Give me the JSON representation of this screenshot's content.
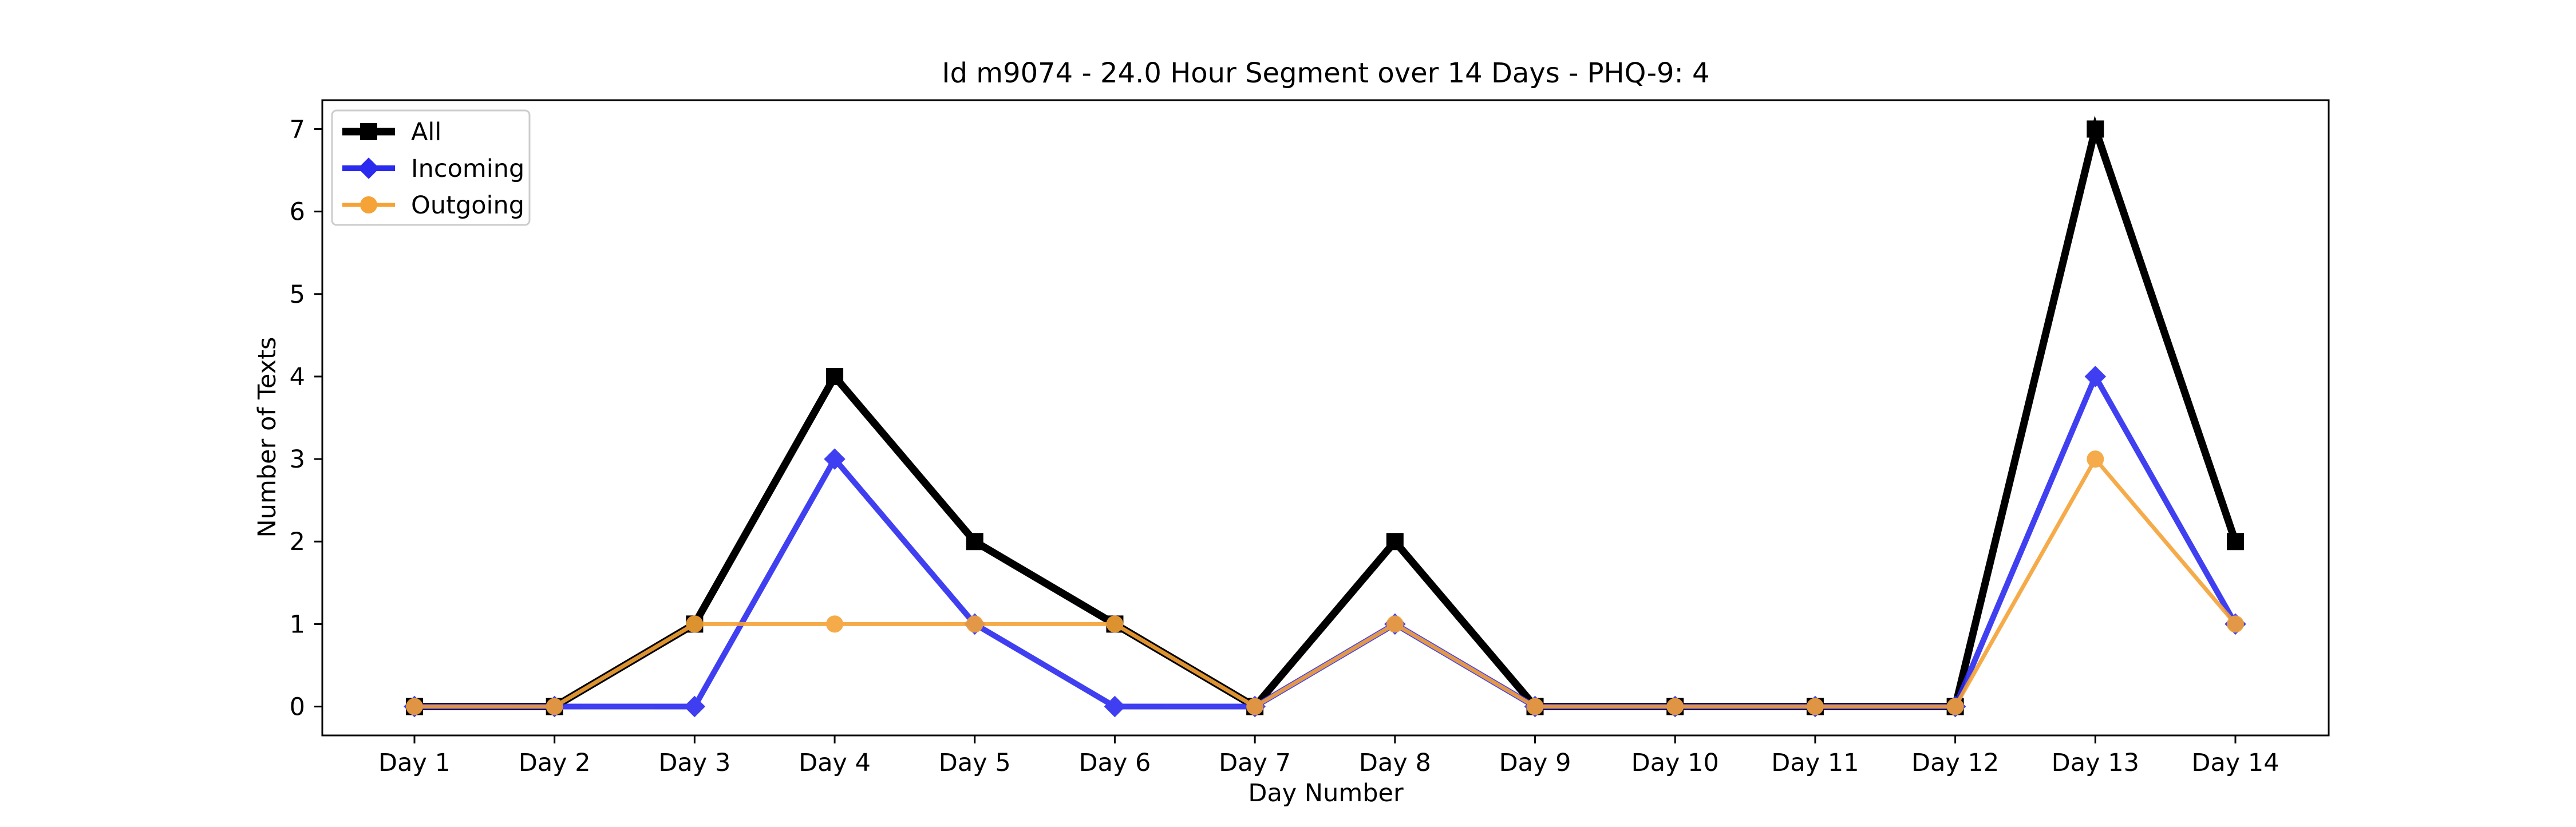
{
  "chart_data": {
    "type": "line",
    "title": "Id m9074 - 24.0 Hour Segment over 14 Days - PHQ-9: 4",
    "xlabel": "Day Number",
    "ylabel": "Number of Texts",
    "categories": [
      "Day 1",
      "Day 2",
      "Day 3",
      "Day 4",
      "Day 5",
      "Day 6",
      "Day 7",
      "Day 8",
      "Day 9",
      "Day 10",
      "Day 11",
      "Day 12",
      "Day 13",
      "Day 14"
    ],
    "ylim": [
      -0.35,
      7.35
    ],
    "yticks": [
      0,
      1,
      2,
      3,
      4,
      5,
      6,
      7
    ],
    "grid": false,
    "legend_position": "top-left",
    "series": [
      {
        "name": "All",
        "color": "#000000",
        "marker": "square",
        "values": [
          0,
          0,
          1,
          4,
          2,
          1,
          0,
          2,
          0,
          0,
          0,
          0,
          7,
          2
        ]
      },
      {
        "name": "Incoming",
        "color": "#2b2bf0",
        "marker": "diamond",
        "values": [
          0,
          0,
          0,
          3,
          1,
          0,
          0,
          1,
          0,
          0,
          0,
          0,
          4,
          1
        ]
      },
      {
        "name": "Outgoing",
        "color": "#f5a236",
        "marker": "circle",
        "values": [
          0,
          0,
          1,
          1,
          1,
          1,
          0,
          1,
          0,
          0,
          0,
          0,
          3,
          1
        ]
      }
    ]
  }
}
